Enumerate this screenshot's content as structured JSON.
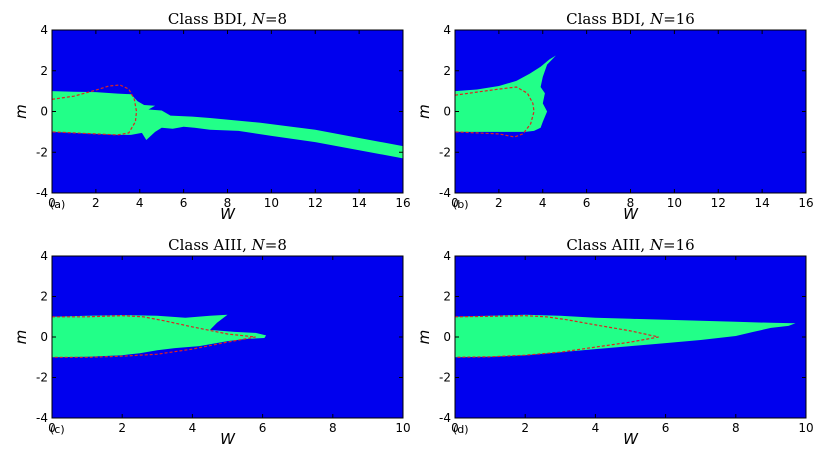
{
  "colors": {
    "background_region": "#0000ee",
    "topological_region": "#22ff88",
    "boundary_curve": "#dd2222",
    "axes": "#000000"
  },
  "chart_data": [
    {
      "type": "area",
      "panel_label": "(a)",
      "title_class": "Class BDI, ",
      "title_n": "N",
      "title_value": "=8",
      "xlabel": "W",
      "ylabel": "m",
      "xlim": [
        0,
        16
      ],
      "ylim": [
        -4,
        4
      ],
      "xticks": [
        0,
        2,
        4,
        6,
        8,
        10,
        12,
        14,
        16
      ],
      "yticks": [
        -4,
        -2,
        0,
        2,
        4
      ],
      "grid": false,
      "regions": [
        [
          [
            0,
            1
          ],
          [
            1,
            0.97
          ],
          [
            2,
            0.95
          ],
          [
            3,
            0.88
          ],
          [
            3.6,
            0.85
          ],
          [
            3.9,
            0.5
          ],
          [
            4.2,
            0.32
          ],
          [
            4.7,
            0.28
          ],
          [
            4.4,
            0.1
          ],
          [
            5.0,
            0.05
          ],
          [
            5.4,
            -0.2
          ],
          [
            6.4,
            -0.25
          ],
          [
            7.2,
            -0.32
          ],
          [
            9.5,
            -0.55
          ],
          [
            12,
            -0.9
          ],
          [
            14,
            -1.3
          ],
          [
            16,
            -1.7
          ],
          [
            16,
            -2.3
          ],
          [
            14,
            -1.9
          ],
          [
            12,
            -1.5
          ],
          [
            10,
            -1.2
          ],
          [
            8.5,
            -0.95
          ],
          [
            7.2,
            -0.9
          ],
          [
            6.5,
            -0.8
          ],
          [
            6,
            -0.75
          ],
          [
            5.5,
            -0.85
          ],
          [
            5,
            -0.8
          ],
          [
            4.7,
            -1.0
          ],
          [
            4.3,
            -1.4
          ],
          [
            4.1,
            -1.05
          ],
          [
            3.6,
            -1.15
          ],
          [
            3,
            -1.15
          ],
          [
            2,
            -1.1
          ],
          [
            1,
            -1.05
          ],
          [
            0,
            -1.0
          ]
        ]
      ],
      "boundary_curve": [
        [
          0,
          0.6
        ],
        [
          1,
          0.75
        ],
        [
          2,
          1.05
        ],
        [
          2.6,
          1.25
        ],
        [
          3.1,
          1.3
        ],
        [
          3.5,
          1.1
        ],
        [
          3.75,
          0.6
        ],
        [
          3.85,
          0
        ],
        [
          3.8,
          -0.5
        ],
        [
          3.5,
          -1.05
        ],
        [
          3,
          -1.15
        ],
        [
          2,
          -1.1
        ],
        [
          1,
          -1.05
        ],
        [
          0,
          -1.0
        ]
      ]
    },
    {
      "type": "area",
      "panel_label": "(b)",
      "title_class": "Class BDI, ",
      "title_n": "N",
      "title_value": "=16",
      "xlabel": "W",
      "ylabel": "m",
      "xlim": [
        0,
        16
      ],
      "ylim": [
        -4,
        4
      ],
      "xticks": [
        0,
        2,
        4,
        6,
        8,
        10,
        12,
        14,
        16
      ],
      "yticks": [
        -4,
        -2,
        0,
        2,
        4
      ],
      "grid": false,
      "regions": [
        [
          [
            0,
            1.0
          ],
          [
            1,
            1.08
          ],
          [
            2,
            1.25
          ],
          [
            2.8,
            1.5
          ],
          [
            3.4,
            1.85
          ],
          [
            3.9,
            2.2
          ],
          [
            4.3,
            2.55
          ],
          [
            4.6,
            2.75
          ],
          [
            4.2,
            2.3
          ],
          [
            4.0,
            1.7
          ],
          [
            3.9,
            1.2
          ],
          [
            4.1,
            0.9
          ],
          [
            4.0,
            0.4
          ],
          [
            4.2,
            0
          ],
          [
            4.0,
            -0.5
          ],
          [
            3.9,
            -0.8
          ],
          [
            3.6,
            -0.95
          ],
          [
            3.2,
            -1.0
          ],
          [
            2.5,
            -1.0
          ],
          [
            1.5,
            -1.0
          ],
          [
            0,
            -1.0
          ]
        ]
      ],
      "boundary_curve": [
        [
          0,
          0.8
        ],
        [
          1,
          0.95
        ],
        [
          2,
          1.1
        ],
        [
          2.8,
          1.2
        ],
        [
          3.3,
          0.9
        ],
        [
          3.55,
          0.4
        ],
        [
          3.6,
          0
        ],
        [
          3.45,
          -0.6
        ],
        [
          3.1,
          -1.1
        ],
        [
          2.7,
          -1.25
        ],
        [
          2,
          -1.1
        ],
        [
          1,
          -1.05
        ],
        [
          0,
          -1.0
        ]
      ]
    },
    {
      "type": "area",
      "panel_label": "(c)",
      "title_class": "Class AIII, ",
      "title_n": "N",
      "title_value": "=8",
      "xlabel": "W",
      "ylabel": "m",
      "xlim": [
        0,
        10
      ],
      "ylim": [
        -4,
        4
      ],
      "xticks": [
        0,
        2,
        4,
        6,
        8,
        10
      ],
      "yticks": [
        -4,
        -2,
        0,
        2,
        4
      ],
      "grid": false,
      "regions": [
        [
          [
            0,
            1.0
          ],
          [
            1,
            1.05
          ],
          [
            2,
            1.08
          ],
          [
            3,
            1.05
          ],
          [
            3.8,
            0.95
          ],
          [
            4.5,
            1.05
          ],
          [
            5.0,
            1.1
          ],
          [
            4.7,
            0.7
          ],
          [
            4.5,
            0.35
          ],
          [
            5.2,
            0.25
          ],
          [
            5.8,
            0.2
          ],
          [
            6.1,
            0.08
          ],
          [
            6.05,
            -0.05
          ],
          [
            5.5,
            -0.1
          ],
          [
            5,
            -0.2
          ],
          [
            4.2,
            -0.45
          ],
          [
            3.5,
            -0.55
          ],
          [
            3,
            -0.65
          ],
          [
            2.5,
            -0.8
          ],
          [
            2,
            -0.9
          ],
          [
            1,
            -0.98
          ],
          [
            0,
            -1.0
          ]
        ]
      ],
      "boundary_curve": [
        [
          0,
          1.0
        ],
        [
          1,
          1.0
        ],
        [
          2,
          1.05
        ],
        [
          2.6,
          1.0
        ],
        [
          3.2,
          0.8
        ],
        [
          4,
          0.5
        ],
        [
          5,
          0.15
        ],
        [
          5.8,
          0.0
        ],
        [
          5,
          -0.25
        ],
        [
          4,
          -0.6
        ],
        [
          3,
          -0.85
        ],
        [
          2,
          -0.95
        ],
        [
          1,
          -1.0
        ],
        [
          0,
          -1.0
        ]
      ]
    },
    {
      "type": "area",
      "panel_label": "(d)",
      "title_class": "Class AIII, ",
      "title_n": "N",
      "title_value": "=16",
      "xlabel": "W",
      "ylabel": "m",
      "xlim": [
        0,
        10
      ],
      "ylim": [
        -4,
        4
      ],
      "xticks": [
        0,
        2,
        4,
        6,
        8,
        10
      ],
      "yticks": [
        -4,
        -2,
        0,
        2,
        4
      ],
      "grid": false,
      "regions": [
        [
          [
            0,
            1.0
          ],
          [
            1,
            1.05
          ],
          [
            2,
            1.1
          ],
          [
            3,
            1.05
          ],
          [
            4,
            0.95
          ],
          [
            5,
            0.9
          ],
          [
            6,
            0.85
          ],
          [
            7,
            0.8
          ],
          [
            8,
            0.75
          ],
          [
            9,
            0.7
          ],
          [
            9.7,
            0.68
          ],
          [
            9.5,
            0.55
          ],
          [
            9,
            0.45
          ],
          [
            8.5,
            0.25
          ],
          [
            8,
            0.05
          ],
          [
            7,
            -0.15
          ],
          [
            6,
            -0.3
          ],
          [
            5,
            -0.45
          ],
          [
            4,
            -0.6
          ],
          [
            3,
            -0.75
          ],
          [
            2,
            -0.9
          ],
          [
            1,
            -0.98
          ],
          [
            0,
            -1.0
          ]
        ]
      ],
      "boundary_curve": [
        [
          0,
          1.0
        ],
        [
          1,
          1.02
        ],
        [
          2,
          1.05
        ],
        [
          2.6,
          1.0
        ],
        [
          3.2,
          0.85
        ],
        [
          4,
          0.6
        ],
        [
          5,
          0.3
        ],
        [
          5.8,
          0.0
        ],
        [
          5,
          -0.25
        ],
        [
          4,
          -0.5
        ],
        [
          3,
          -0.75
        ],
        [
          2,
          -0.9
        ],
        [
          1,
          -0.98
        ],
        [
          0,
          -1.0
        ]
      ]
    }
  ]
}
